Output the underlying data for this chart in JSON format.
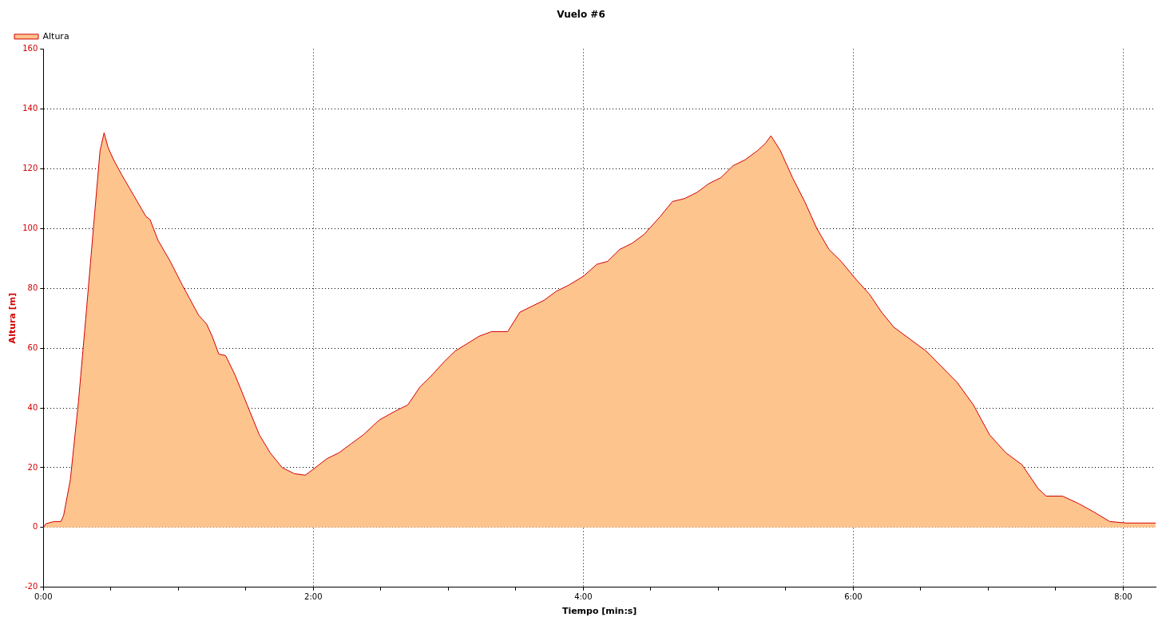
{
  "chart_data": {
    "type": "area",
    "title": "Vuelo #6",
    "xlabel": "Tiempo [min:s]",
    "ylabel": "Altura [m]",
    "x": [
      0,
      0.02,
      0.08,
      0.13,
      0.15,
      0.2,
      0.26,
      0.32,
      0.38,
      0.42,
      0.45,
      0.48,
      0.52,
      0.58,
      0.67,
      0.76,
      0.79,
      0.85,
      0.94,
      1.03,
      1.15,
      1.21,
      1.25,
      1.3,
      1.35,
      1.42,
      1.51,
      1.6,
      1.68,
      1.77,
      1.86,
      1.94,
      2,
      2.1,
      2.19,
      2.28,
      2.37,
      2.49,
      2.61,
      2.7,
      2.79,
      2.88,
      2.96,
      3.05,
      3.14,
      3.23,
      3.32,
      3.44,
      3.53,
      3.62,
      3.71,
      3.8,
      3.89,
      4,
      4.1,
      4.18,
      4.27,
      4.36,
      4.45,
      4.57,
      4.66,
      4.75,
      4.84,
      4.93,
      5.02,
      5.11,
      5.2,
      5.29,
      5.35,
      5.39,
      5.46,
      5.55,
      5.64,
      5.73,
      5.82,
      5.91,
      6.02,
      6.12,
      6.21,
      6.3,
      6.42,
      6.54,
      6.65,
      6.77,
      6.89,
      7.01,
      7.13,
      7.25,
      7.37,
      7.43,
      7.55,
      7.67,
      7.79,
      7.9,
      8.02,
      8.24
    ],
    "series": [
      {
        "name": "Altura",
        "color": "#fdc48e",
        "values": [
          0,
          1.3,
          2,
          2,
          4,
          16,
          42,
          73,
          105,
          126,
          132,
          127,
          123,
          118,
          111,
          104,
          103,
          96,
          89,
          81,
          71,
          68,
          64,
          58,
          57.5,
          51,
          41,
          31,
          25,
          20,
          18,
          17.5,
          19.5,
          23,
          25,
          28,
          31,
          36,
          39,
          41,
          47,
          51,
          55,
          59,
          61.5,
          64,
          65.5,
          65.5,
          72,
          74,
          76,
          79,
          81,
          84,
          88,
          89,
          93,
          95,
          98,
          104,
          109,
          110,
          112,
          115,
          117,
          121,
          123,
          126,
          128.5,
          131,
          126,
          117,
          109,
          100,
          93,
          89,
          83,
          78,
          72,
          67,
          63,
          59,
          54,
          48.5,
          41,
          31,
          25,
          21,
          13,
          10.5,
          10.5,
          8,
          5,
          2,
          1.5,
          1.5
        ]
      }
    ],
    "xlim": [
      0,
      8.24
    ],
    "xticks": [
      {
        "value": 0,
        "label": "0:00"
      },
      {
        "value": 0.5,
        "label": null
      },
      {
        "value": 1,
        "label": null
      },
      {
        "value": 1.5,
        "label": null
      },
      {
        "value": 2,
        "label": "2:00"
      },
      {
        "value": 2.5,
        "label": null
      },
      {
        "value": 3,
        "label": null
      },
      {
        "value": 3.5,
        "label": null
      },
      {
        "value": 4,
        "label": "4:00"
      },
      {
        "value": 4.5,
        "label": null
      },
      {
        "value": 5,
        "label": null
      },
      {
        "value": 5.5,
        "label": null
      },
      {
        "value": 6,
        "label": "6:00"
      },
      {
        "value": 6.5,
        "label": null
      },
      {
        "value": 7,
        "label": null
      },
      {
        "value": 7.5,
        "label": null
      },
      {
        "value": 8,
        "label": "8:00"
      }
    ],
    "ylim": [
      -20,
      160
    ],
    "yticks": [
      -20,
      0,
      20,
      40,
      60,
      80,
      100,
      120,
      140,
      160
    ],
    "grid": true,
    "legend": "top left"
  }
}
